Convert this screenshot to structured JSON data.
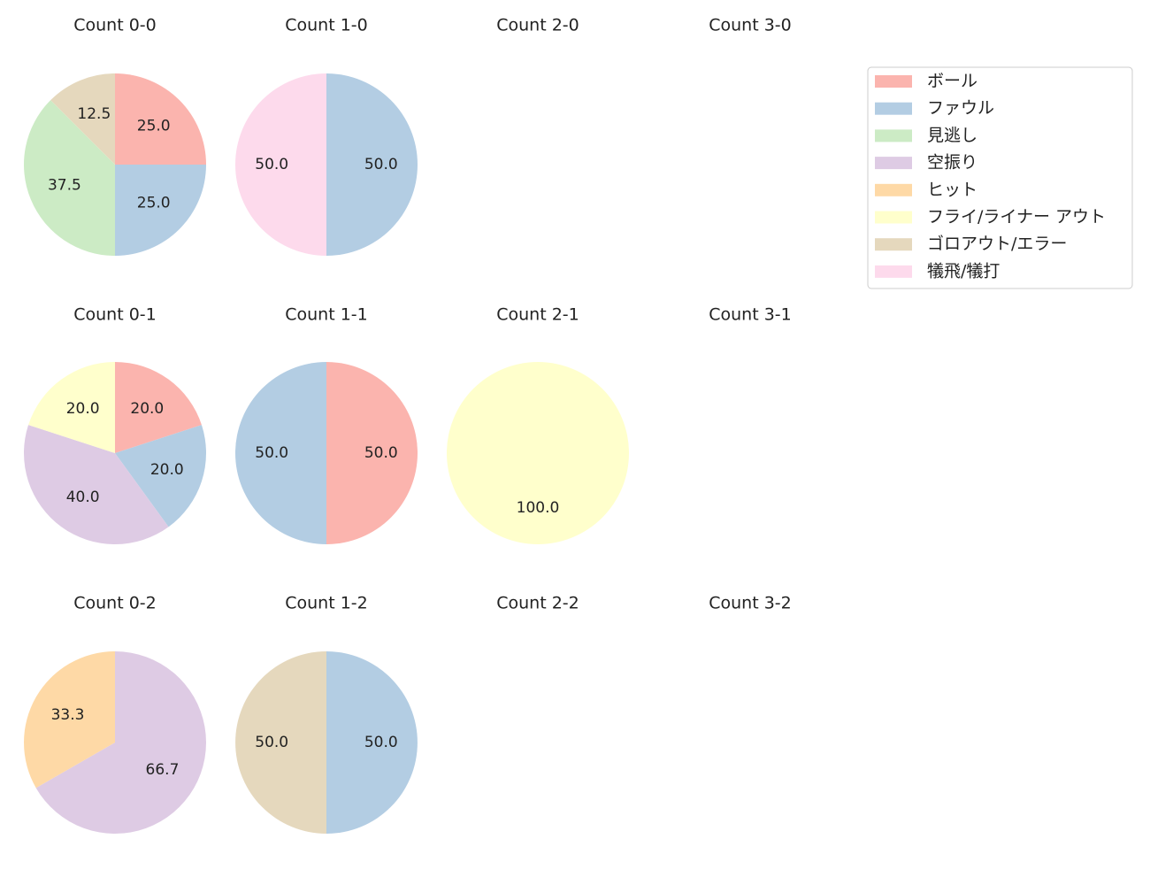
{
  "colors": {
    "ball": "#fbb4ae",
    "foul": "#b3cde3",
    "called_strike": "#ccebc5",
    "swinging_strike": "#decbe4",
    "hit": "#fed9a6",
    "fly_liner_out": "#ffffcc",
    "grounder_out_error": "#e5d8bd",
    "sacrifice": "#fddaec"
  },
  "legend": {
    "items": [
      {
        "key": "ball",
        "label": "ボール"
      },
      {
        "key": "foul",
        "label": "ファウル"
      },
      {
        "key": "called_strike",
        "label": "見逃し"
      },
      {
        "key": "swinging_strike",
        "label": "空振り"
      },
      {
        "key": "hit",
        "label": "ヒット"
      },
      {
        "key": "fly_liner_out",
        "label": "フライ/ライナー アウト"
      },
      {
        "key": "grounder_out_error",
        "label": "ゴロアウト/エラー"
      },
      {
        "key": "sacrifice",
        "label": "犠飛/犠打"
      }
    ]
  },
  "chart_data": [
    {
      "type": "pie",
      "title": "Count 0-0",
      "slices": [
        {
          "category": "ball",
          "value": 25.0,
          "label": "25.0"
        },
        {
          "category": "foul",
          "value": 25.0,
          "label": "25.0"
        },
        {
          "category": "called_strike",
          "value": 37.5,
          "label": "37.5"
        },
        {
          "category": "grounder_out_error",
          "value": 12.5,
          "label": "12.5"
        }
      ]
    },
    {
      "type": "pie",
      "title": "Count 1-0",
      "slices": [
        {
          "category": "foul",
          "value": 50.0,
          "label": "50.0"
        },
        {
          "category": "sacrifice",
          "value": 50.0,
          "label": "50.0"
        }
      ]
    },
    {
      "type": "pie",
      "title": "Count 2-0",
      "slices": []
    },
    {
      "type": "pie",
      "title": "Count 3-0",
      "slices": []
    },
    {
      "type": "pie",
      "title": "Count 0-1",
      "slices": [
        {
          "category": "ball",
          "value": 20.0,
          "label": "20.0"
        },
        {
          "category": "foul",
          "value": 20.0,
          "label": "20.0"
        },
        {
          "category": "swinging_strike",
          "value": 40.0,
          "label": "40.0"
        },
        {
          "category": "fly_liner_out",
          "value": 20.0,
          "label": "20.0"
        }
      ]
    },
    {
      "type": "pie",
      "title": "Count 1-1",
      "slices": [
        {
          "category": "ball",
          "value": 50.0,
          "label": "50.0"
        },
        {
          "category": "foul",
          "value": 50.0,
          "label": "50.0"
        }
      ]
    },
    {
      "type": "pie",
      "title": "Count 2-1",
      "slices": [
        {
          "category": "fly_liner_out",
          "value": 100.0,
          "label": "100.0"
        }
      ]
    },
    {
      "type": "pie",
      "title": "Count 3-1",
      "slices": []
    },
    {
      "type": "pie",
      "title": "Count 0-2",
      "slices": [
        {
          "category": "swinging_strike",
          "value": 66.7,
          "label": "66.7"
        },
        {
          "category": "hit",
          "value": 33.3,
          "label": "33.3"
        }
      ]
    },
    {
      "type": "pie",
      "title": "Count 1-2",
      "slices": [
        {
          "category": "foul",
          "value": 50.0,
          "label": "50.0"
        },
        {
          "category": "grounder_out_error",
          "value": 50.0,
          "label": "50.0"
        }
      ]
    },
    {
      "type": "pie",
      "title": "Count 2-2",
      "slices": []
    },
    {
      "type": "pie",
      "title": "Count 3-2",
      "slices": []
    }
  ]
}
